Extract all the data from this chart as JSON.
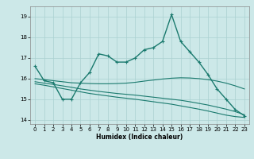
{
  "xlabel": "Humidex (Indice chaleur)",
  "background_color": "#cce8e8",
  "grid_color": "#aad0d0",
  "line_color": "#1a7a6e",
  "xlim": [
    -0.5,
    23.5
  ],
  "ylim": [
    13.8,
    19.5
  ],
  "yticks": [
    14,
    15,
    16,
    17,
    18,
    19
  ],
  "xticks": [
    0,
    1,
    2,
    3,
    4,
    5,
    6,
    7,
    8,
    9,
    10,
    11,
    12,
    13,
    14,
    15,
    16,
    17,
    18,
    19,
    20,
    21,
    22,
    23
  ],
  "series": {
    "line1_x": [
      0,
      1,
      2,
      3,
      4,
      5,
      6,
      7,
      8,
      9,
      10,
      11,
      12,
      13,
      14,
      15,
      16,
      17,
      18,
      19,
      20,
      21,
      22,
      23
    ],
    "line1_y": [
      16.6,
      15.9,
      15.8,
      15.0,
      15.0,
      15.8,
      16.3,
      17.2,
      17.1,
      16.8,
      16.8,
      17.0,
      17.4,
      17.5,
      17.8,
      19.1,
      17.8,
      17.3,
      16.8,
      16.2,
      15.5,
      15.0,
      14.5,
      14.2
    ],
    "line2_x": [
      0,
      1,
      2,
      3,
      4,
      5,
      6,
      7,
      8,
      9,
      10,
      11,
      12,
      13,
      14,
      15,
      16,
      17,
      18,
      19,
      20,
      21,
      22,
      23
    ],
    "line2_y": [
      16.0,
      15.95,
      15.9,
      15.85,
      15.8,
      15.78,
      15.76,
      15.75,
      15.75,
      15.76,
      15.78,
      15.82,
      15.88,
      15.93,
      15.98,
      16.02,
      16.04,
      16.03,
      16.0,
      15.95,
      15.88,
      15.78,
      15.65,
      15.5
    ],
    "line3_x": [
      0,
      1,
      2,
      3,
      4,
      5,
      6,
      7,
      8,
      9,
      10,
      11,
      12,
      13,
      14,
      15,
      16,
      17,
      18,
      19,
      20,
      21,
      22,
      23
    ],
    "line3_y": [
      15.85,
      15.78,
      15.72,
      15.65,
      15.58,
      15.5,
      15.44,
      15.38,
      15.33,
      15.28,
      15.24,
      15.2,
      15.15,
      15.1,
      15.05,
      15.0,
      14.95,
      14.88,
      14.8,
      14.72,
      14.62,
      14.52,
      14.4,
      14.25
    ],
    "line4_x": [
      0,
      1,
      2,
      3,
      4,
      5,
      6,
      7,
      8,
      9,
      10,
      11,
      12,
      13,
      14,
      15,
      16,
      17,
      18,
      19,
      20,
      21,
      22,
      23
    ],
    "line4_y": [
      15.75,
      15.68,
      15.6,
      15.52,
      15.44,
      15.36,
      15.28,
      15.22,
      15.16,
      15.1,
      15.05,
      15.0,
      14.94,
      14.88,
      14.82,
      14.76,
      14.68,
      14.6,
      14.52,
      14.43,
      14.33,
      14.23,
      14.16,
      14.12
    ]
  }
}
